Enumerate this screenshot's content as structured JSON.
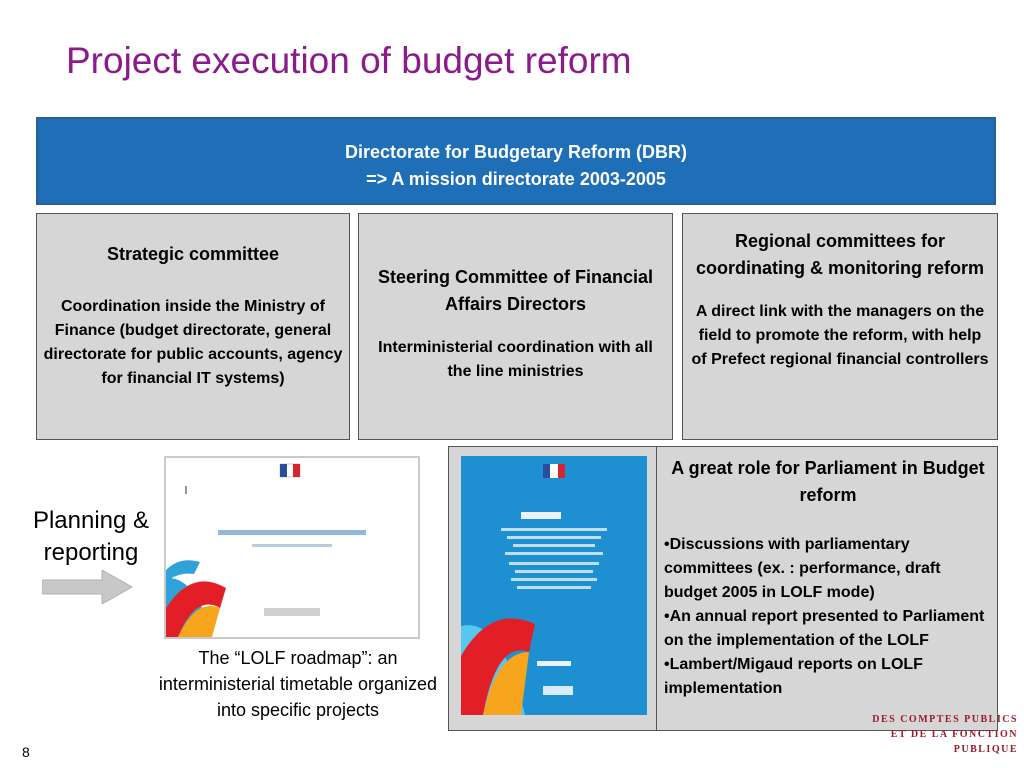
{
  "title": "Project execution of budget reform",
  "dbr": {
    "line1": "Directorate for Budgetary Reform (DBR)",
    "line2": "=> A mission directorate 2003-2005"
  },
  "strategic": {
    "head": "Strategic committee",
    "body": "Coordination inside the Ministry of Finance (budget directorate, general directorate for public accounts, agency for financial IT systems)"
  },
  "steering": {
    "head": "Steering Committee of Financial Affairs Directors",
    "body": "Interministerial coordination with all the line ministries"
  },
  "regional": {
    "head": "Regional committees for coordinating & monitoring reform",
    "body": "A direct link with the managers on the field to promote the reform, with help of Prefect regional financial controllers"
  },
  "planning": {
    "label": "Planning & reporting"
  },
  "roadmap": {
    "caption": "The “LOLF roadmap”: an interministerial timetable organized into specific projects"
  },
  "parliament": {
    "head": "A great role for Parliament in Budget reform",
    "bullets": [
      "•Discussions with parliamentary committees (ex. : performance, draft budget 2005 in LOLF mode)",
      "•An annual report presented to Parliament on the implementation of the LOLF",
      "•Lambert/Migaud reports on LOLF implementation"
    ]
  },
  "logo": {
    "line1": "DES COMPTES PUBLICS",
    "line2": "ET DE LA FONCTION PUBLIQUE"
  },
  "page_number": "8",
  "colors": {
    "title": "#8b1a8a",
    "dbr_bg": "#1f6fb8",
    "box_bg": "#d6d6d6",
    "rapport_bg": "#1e8fd0"
  }
}
